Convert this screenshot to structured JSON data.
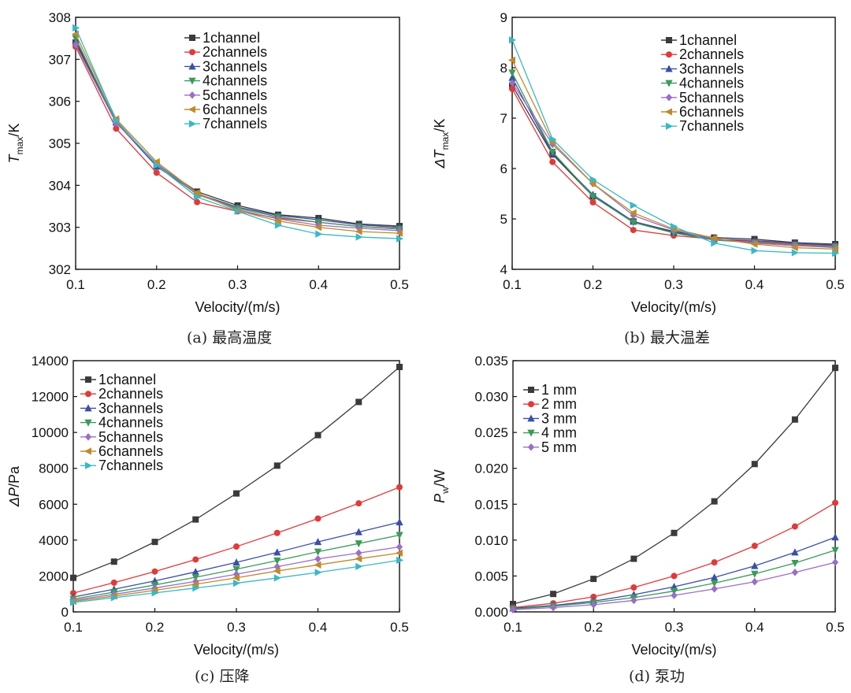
{
  "chart_data": [
    {
      "type": "line",
      "id": "a",
      "caption": "(a) 最高温度",
      "xlabel": "Velocity/(m/s)",
      "ylabel_main": "T",
      "ylabel_sub": "max",
      "ylabel_unit": "/K",
      "ylabel_delta": "",
      "xlim": [
        0.1,
        0.5
      ],
      "ylim": [
        302,
        308
      ],
      "xticks": [
        0.1,
        0.2,
        0.3,
        0.4,
        0.5
      ],
      "yticks": [
        302,
        303,
        304,
        305,
        306,
        307,
        308
      ],
      "ytick_decimals": 0,
      "x": [
        0.1,
        0.15,
        0.2,
        0.25,
        0.3,
        0.35,
        0.4,
        0.45,
        0.5
      ],
      "legend_position": "top-center",
      "series": [
        {
          "name": "1channel",
          "color": "#3a3a3a",
          "marker": "square",
          "values": [
            307.4,
            305.5,
            304.5,
            303.85,
            303.52,
            303.3,
            303.22,
            303.08,
            303.03
          ]
        },
        {
          "name": "2channels",
          "color": "#e03a3a",
          "marker": "circle",
          "values": [
            307.3,
            305.35,
            304.3,
            303.6,
            303.38,
            303.22,
            303.12,
            303.02,
            302.97
          ]
        },
        {
          "name": "3channels",
          "color": "#3a4fa8",
          "marker": "triangle-up",
          "values": [
            307.45,
            305.5,
            304.45,
            303.8,
            303.48,
            303.28,
            303.18,
            303.06,
            303.0
          ]
        },
        {
          "name": "4channels",
          "color": "#3c9a5a",
          "marker": "triangle-down",
          "values": [
            307.5,
            305.52,
            304.5,
            303.78,
            303.45,
            303.25,
            303.12,
            303.02,
            302.96
          ]
        },
        {
          "name": "5channels",
          "color": "#9a6fc4",
          "marker": "diamond",
          "values": [
            307.35,
            305.48,
            304.52,
            303.8,
            303.42,
            303.2,
            303.05,
            302.98,
            302.92
          ]
        },
        {
          "name": "6channels",
          "color": "#c08a2a",
          "marker": "triangle-left",
          "values": [
            307.6,
            305.58,
            304.56,
            303.82,
            303.4,
            303.15,
            303.0,
            302.9,
            302.86
          ]
        },
        {
          "name": "7channels",
          "color": "#3ab8c4",
          "marker": "triangle-right",
          "values": [
            307.75,
            305.55,
            304.48,
            303.72,
            303.38,
            303.05,
            302.84,
            302.77,
            302.73
          ]
        }
      ]
    },
    {
      "type": "line",
      "id": "b",
      "caption": "(b) 最大温差",
      "xlabel": "Velocity/(m/s)",
      "ylabel_main": "T",
      "ylabel_sub": "max",
      "ylabel_unit": "/K",
      "ylabel_delta": "Δ",
      "xlim": [
        0.1,
        0.5
      ],
      "ylim": [
        4,
        9
      ],
      "xticks": [
        0.1,
        0.2,
        0.3,
        0.4,
        0.5
      ],
      "yticks": [
        4,
        5,
        6,
        7,
        8,
        9
      ],
      "ytick_decimals": 0,
      "x": [
        0.1,
        0.15,
        0.2,
        0.25,
        0.3,
        0.35,
        0.4,
        0.45,
        0.5
      ],
      "legend_position": "top-center",
      "series": [
        {
          "name": "1channel",
          "color": "#3a3a3a",
          "marker": "square",
          "values": [
            7.65,
            6.28,
            5.45,
            4.95,
            4.75,
            4.63,
            4.6,
            4.53,
            4.5
          ]
        },
        {
          "name": "2channels",
          "color": "#e03a3a",
          "marker": "circle",
          "values": [
            7.58,
            6.13,
            5.33,
            4.78,
            4.67,
            4.6,
            4.55,
            4.5,
            4.47
          ]
        },
        {
          "name": "3channels",
          "color": "#3a4fa8",
          "marker": "triangle-up",
          "values": [
            7.8,
            6.3,
            5.48,
            4.95,
            4.73,
            4.6,
            4.57,
            4.52,
            4.48
          ]
        },
        {
          "name": "4channels",
          "color": "#3c9a5a",
          "marker": "triangle-down",
          "values": [
            7.9,
            6.33,
            5.45,
            4.93,
            4.72,
            4.58,
            4.53,
            4.48,
            4.45
          ]
        },
        {
          "name": "5channels",
          "color": "#9a6fc4",
          "marker": "diamond",
          "values": [
            7.7,
            6.48,
            5.7,
            5.07,
            4.78,
            4.6,
            4.52,
            4.47,
            4.43
          ]
        },
        {
          "name": "6channels",
          "color": "#c08a2a",
          "marker": "triangle-left",
          "values": [
            8.15,
            6.52,
            5.7,
            5.12,
            4.8,
            4.62,
            4.5,
            4.43,
            4.4
          ]
        },
        {
          "name": "7channels",
          "color": "#3ab8c4",
          "marker": "triangle-right",
          "values": [
            8.55,
            6.58,
            5.78,
            5.27,
            4.85,
            4.52,
            4.37,
            4.33,
            4.32
          ]
        }
      ]
    },
    {
      "type": "line",
      "id": "c",
      "caption": "(c) 压降",
      "xlabel": "Velocity/(m/s)",
      "ylabel_main": "P",
      "ylabel_sub": "",
      "ylabel_unit": "/Pa",
      "ylabel_delta": "Δ",
      "xlim": [
        0.1,
        0.5
      ],
      "ylim": [
        0,
        14000
      ],
      "xticks": [
        0.1,
        0.2,
        0.3,
        0.4,
        0.5
      ],
      "yticks": [
        0,
        2000,
        4000,
        6000,
        8000,
        10000,
        12000,
        14000
      ],
      "ytick_decimals": 0,
      "x": [
        0.1,
        0.15,
        0.2,
        0.25,
        0.3,
        0.35,
        0.4,
        0.45,
        0.5
      ],
      "legend_position": "top-left",
      "series": [
        {
          "name": "1channel",
          "color": "#3a3a3a",
          "marker": "square",
          "values": [
            1900,
            2800,
            3900,
            5150,
            6600,
            8150,
            9850,
            11700,
            13650
          ]
        },
        {
          "name": "2channels",
          "color": "#e03a3a",
          "marker": "circle",
          "values": [
            1050,
            1630,
            2250,
            2920,
            3640,
            4400,
            5200,
            6050,
            6950
          ]
        },
        {
          "name": "3channels",
          "color": "#3a4fa8",
          "marker": "triangle-up",
          "values": [
            830,
            1260,
            1730,
            2230,
            2760,
            3320,
            3900,
            4450,
            5000
          ]
        },
        {
          "name": "4channels",
          "color": "#3c9a5a",
          "marker": "triangle-down",
          "values": [
            720,
            1100,
            1500,
            1930,
            2380,
            2860,
            3350,
            3810,
            4280
          ]
        },
        {
          "name": "5channels",
          "color": "#9a6fc4",
          "marker": "diamond",
          "values": [
            650,
            980,
            1330,
            1700,
            2100,
            2520,
            2950,
            3280,
            3620
          ]
        },
        {
          "name": "6channels",
          "color": "#c08a2a",
          "marker": "triangle-left",
          "values": [
            590,
            880,
            1200,
            1540,
            1900,
            2280,
            2620,
            2960,
            3280
          ]
        },
        {
          "name": "7channels",
          "color": "#3ab8c4",
          "marker": "triangle-right",
          "values": [
            530,
            790,
            1060,
            1330,
            1600,
            1890,
            2200,
            2530,
            2880
          ]
        }
      ]
    },
    {
      "type": "line",
      "id": "d",
      "caption": "(d) 泵功",
      "xlabel": "Velocity/(m/s)",
      "ylabel_main": "P",
      "ylabel_sub": "w",
      "ylabel_unit": "/W",
      "ylabel_delta": "",
      "xlim": [
        0.1,
        0.5
      ],
      "ylim": [
        0,
        0.035
      ],
      "xticks": [
        0.1,
        0.2,
        0.3,
        0.4,
        0.5
      ],
      "yticks": [
        0,
        0.005,
        0.01,
        0.015,
        0.02,
        0.025,
        0.03,
        0.035
      ],
      "ytick_decimals": 3,
      "x": [
        0.1,
        0.15,
        0.2,
        0.25,
        0.3,
        0.35,
        0.4,
        0.45,
        0.5
      ],
      "legend_position": "top-left",
      "series": [
        {
          "name": "1 mm",
          "color": "#3a3a3a",
          "marker": "square",
          "values": [
            0.0011,
            0.0025,
            0.0046,
            0.0074,
            0.011,
            0.0154,
            0.0206,
            0.0268,
            0.034
          ]
        },
        {
          "name": "2 mm",
          "color": "#e03a3a",
          "marker": "circle",
          "values": [
            0.0006,
            0.0012,
            0.0021,
            0.0034,
            0.005,
            0.0069,
            0.0092,
            0.0119,
            0.0152
          ]
        },
        {
          "name": "3 mm",
          "color": "#3a4fa8",
          "marker": "triangle-up",
          "values": [
            0.0005,
            0.0009,
            0.0015,
            0.0024,
            0.0035,
            0.0048,
            0.0064,
            0.0083,
            0.0104
          ]
        },
        {
          "name": "4 mm",
          "color": "#3c9a5a",
          "marker": "triangle-down",
          "values": [
            0.0004,
            0.0008,
            0.0013,
            0.002,
            0.0029,
            0.004,
            0.0053,
            0.0068,
            0.0086
          ]
        },
        {
          "name": "5 mm",
          "color": "#9a6fc4",
          "marker": "diamond",
          "values": [
            0.0003,
            0.0006,
            0.001,
            0.0016,
            0.0023,
            0.0032,
            0.0042,
            0.0055,
            0.0069
          ]
        }
      ]
    }
  ]
}
